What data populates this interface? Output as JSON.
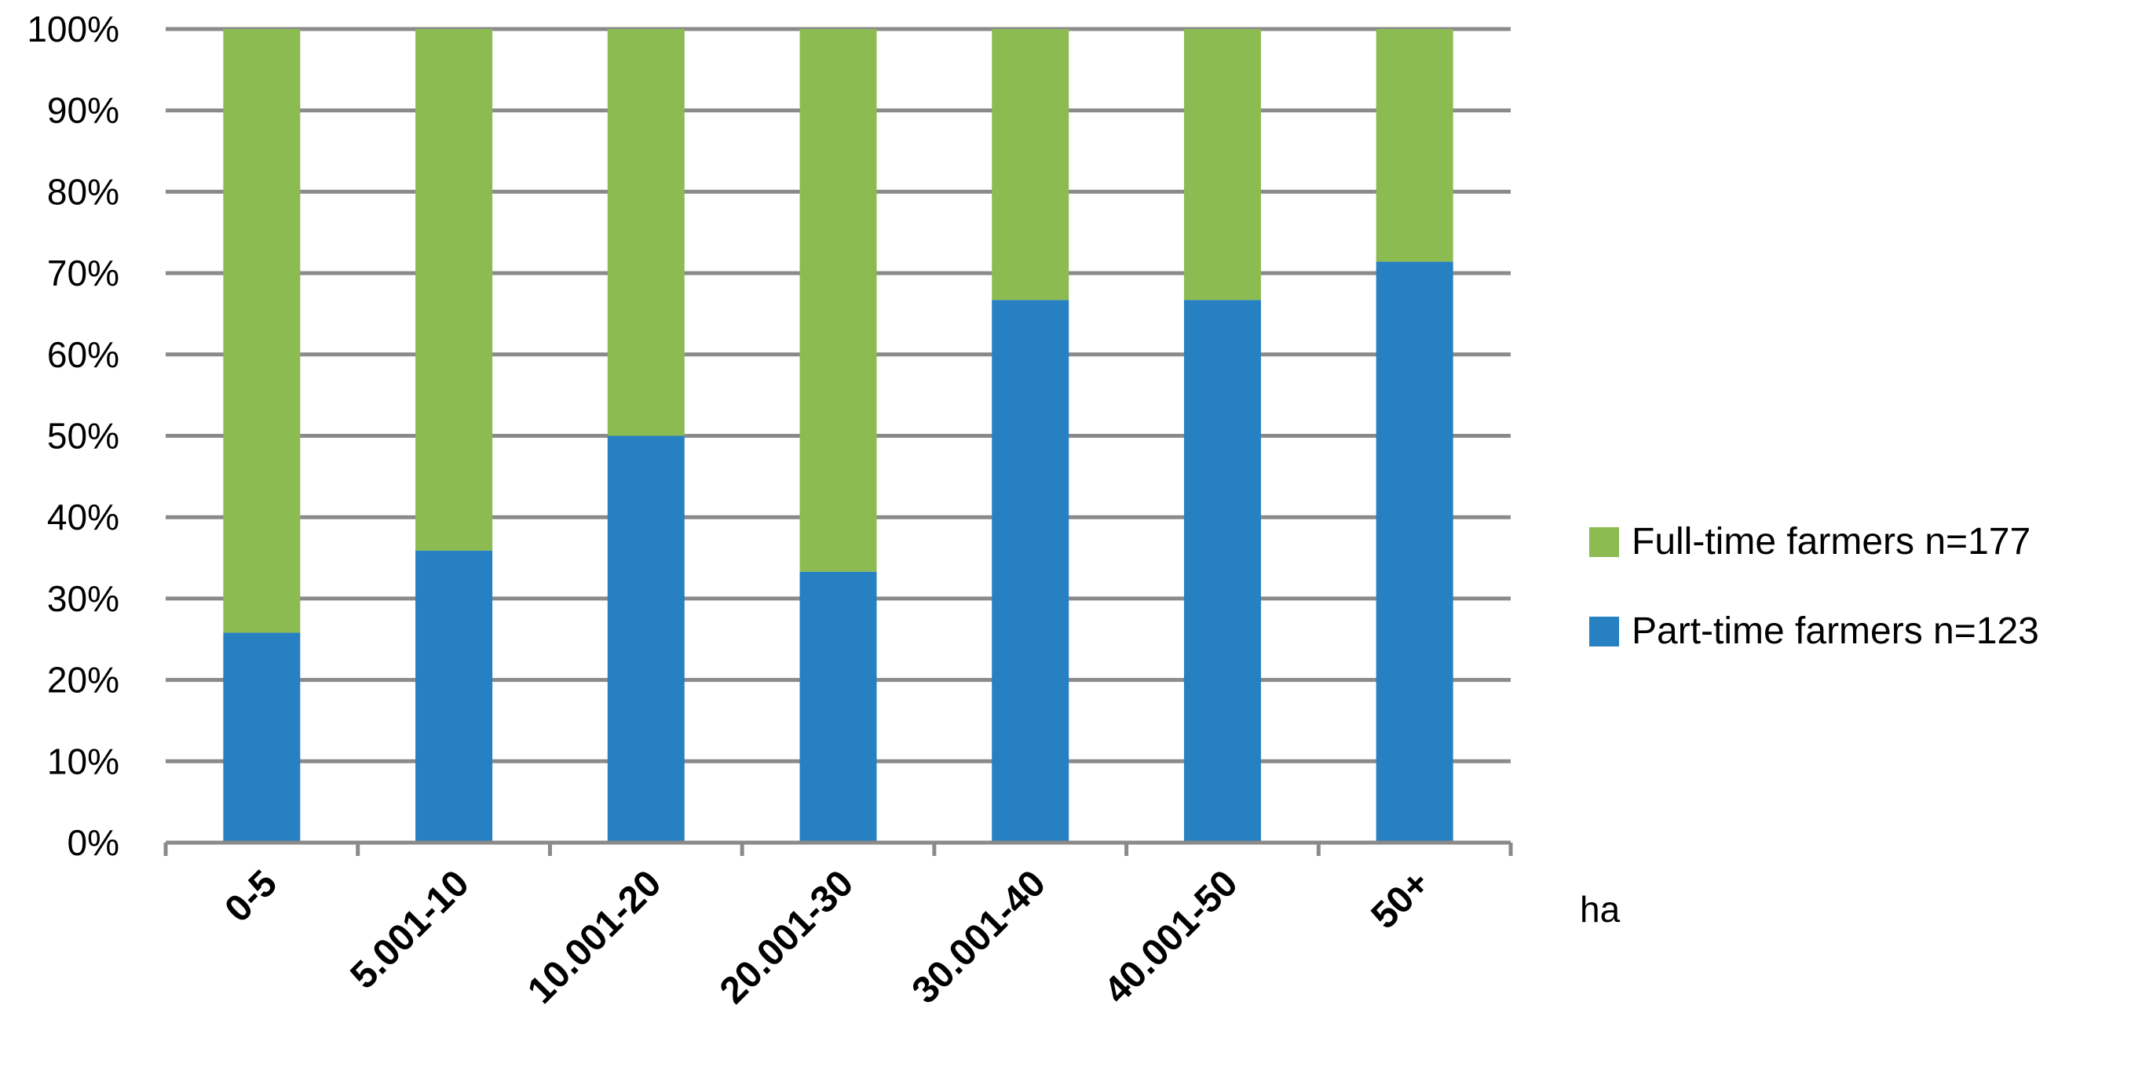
{
  "chart_data": {
    "type": "bar",
    "stacked": true,
    "percent_stacked": true,
    "categories": [
      "0-5",
      "5.001-10",
      "10.001-20",
      "20.001-30",
      "30.001-40",
      "40.001-50",
      "50+"
    ],
    "series": [
      {
        "name": "Part-time farmers n=123",
        "values": [
          25.8,
          35.9,
          50.0,
          33.3,
          66.7,
          66.7,
          71.4
        ],
        "color": "#2680c2"
      },
      {
        "name": "Full-time farmers n=177",
        "values": [
          74.2,
          64.1,
          50.0,
          66.7,
          33.3,
          33.3,
          28.6
        ],
        "color": "#8cbb52"
      }
    ],
    "yticks": [
      "0%",
      "10%",
      "20%",
      "30%",
      "40%",
      "50%",
      "60%",
      "70%",
      "80%",
      "90%",
      "100%"
    ],
    "ylim": [
      0,
      100
    ],
    "xlabel": "ha",
    "ylabel": "",
    "grid": true,
    "legend_position": "right",
    "legend_order": [
      "Full-time farmers n=177",
      "Part-time farmers n=123"
    ],
    "gridline_color": "#8a8a8a",
    "text_color": "#000000"
  }
}
